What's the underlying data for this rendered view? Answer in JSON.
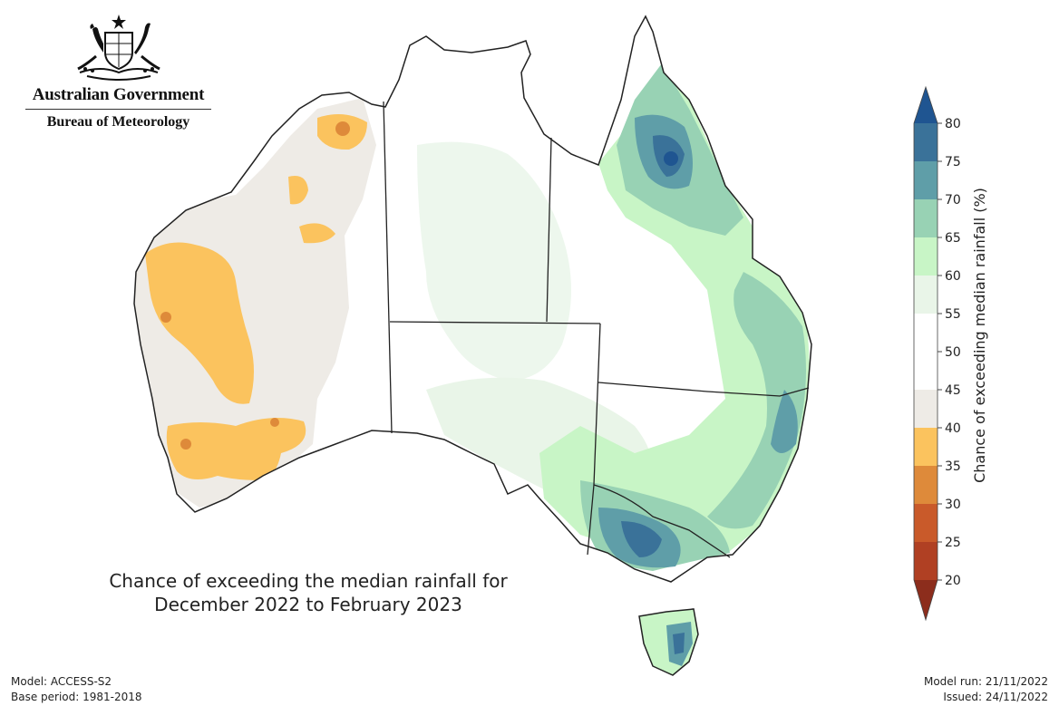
{
  "header": {
    "org_name": "Australian Government",
    "agency_name": "Bureau of Meteorology"
  },
  "map": {
    "title_line1": "Chance of exceeding the median rainfall for",
    "title_line2": "December 2022 to February 2023",
    "region": "Australia"
  },
  "legend": {
    "title": "Chance of exceeding median rainfall (%)",
    "ticks": [
      "20",
      "25",
      "30",
      "35",
      "40",
      "45",
      "50",
      "55",
      "60",
      "65",
      "70",
      "75",
      "80"
    ],
    "bins": [
      {
        "range": "<20",
        "color": "#8c2d1c"
      },
      {
        "range": "20-25",
        "color": "#b04023"
      },
      {
        "range": "25-30",
        "color": "#c95a2a"
      },
      {
        "range": "30-35",
        "color": "#de8a3a"
      },
      {
        "range": "35-40",
        "color": "#fbc35e"
      },
      {
        "range": "40-45",
        "color": "#eeebe6"
      },
      {
        "range": "45-50",
        "color": "#ffffff"
      },
      {
        "range": "50-55",
        "color": "#ffffff"
      },
      {
        "range": "55-60",
        "color": "#e9f5e8"
      },
      {
        "range": "60-65",
        "color": "#c8f5c6"
      },
      {
        "range": "65-70",
        "color": "#98d2b4"
      },
      {
        "range": "70-75",
        "color": "#5f9ea8"
      },
      {
        "range": "75-80",
        "color": "#3a7299"
      },
      {
        "range": ">80",
        "color": "#1f5591"
      }
    ]
  },
  "footer": {
    "model": "Model: ACCESS-S2",
    "base_period": "Base period: 1981-2018",
    "model_run": "Model run: 21/11/2022",
    "issued": "Issued: 24/11/2022"
  }
}
